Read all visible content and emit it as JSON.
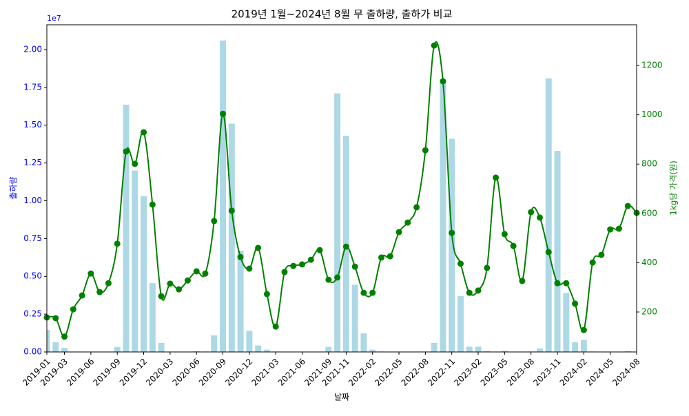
{
  "chart_data": {
    "type": "bar_line",
    "title": "2019년 1월~2024년 8월 무 출하량, 출하가 비교",
    "x_label": "날짜",
    "y_label": "출하량",
    "y2_label": "1kg당 가격(원)",
    "y_offset_label": "1e7",
    "categories": [
      "2019-01",
      null,
      "2019-03",
      null,
      null,
      "2019-06",
      null,
      null,
      "2019-09",
      null,
      null,
      "2019-12",
      null,
      null,
      "2020-03",
      null,
      null,
      "2020-06",
      null,
      null,
      "2020-09",
      null,
      null,
      "2020-12",
      null,
      null,
      "2021-03",
      null,
      null,
      "2021-06",
      null,
      null,
      "2021-09",
      null,
      "2021-11",
      null,
      null,
      "2022-02",
      null,
      null,
      "2022-05",
      null,
      null,
      "2022-08",
      null,
      null,
      "2022-11",
      null,
      null,
      "2023-02",
      null,
      null,
      "2023-05",
      null,
      null,
      "2023-08",
      null,
      null,
      "2023-11",
      null,
      null,
      "2024-02",
      null,
      null,
      "2024-05",
      null,
      null,
      "2024-08"
    ],
    "series": [
      {
        "name": "출하량",
        "type": "bar",
        "axis": "y",
        "color": "#add8e6",
        "values": [
          1460000,
          640000,
          270000,
          20000,
          10000,
          10000,
          10000,
          20000,
          330000,
          16350000,
          12000000,
          10300000,
          4550000,
          600000,
          20000,
          10000,
          10000,
          50000,
          30000,
          1100000,
          20600000,
          15100000,
          6700000,
          1400000,
          430000,
          150000,
          30000,
          10000,
          10000,
          10000,
          10000,
          20000,
          330000,
          17100000,
          14300000,
          4450000,
          1230000,
          150000,
          30000,
          10000,
          10000,
          10000,
          20000,
          30000,
          600000,
          17900000,
          14100000,
          3700000,
          350000,
          350000,
          50000,
          20000,
          80000,
          20000,
          20000,
          30000,
          230000,
          18100000,
          13300000,
          3900000,
          640000,
          800000,
          30000,
          10000,
          10000,
          20000,
          50000,
          20000
        ]
      },
      {
        "name": "1kg당 가격",
        "type": "line",
        "axis": "y2",
        "color": "#008000",
        "values": [
          178,
          175,
          100,
          211,
          267,
          356,
          281,
          317,
          477,
          851,
          801,
          929,
          636,
          264,
          315,
          292,
          328,
          365,
          356,
          569,
          1004,
          611,
          423,
          376,
          460,
          273,
          141,
          362,
          387,
          393,
          412,
          451,
          331,
          340,
          465,
          384,
          278,
          278,
          421,
          426,
          524,
          563,
          625,
          856,
          1281,
          1136,
          521,
          396,
          278,
          287,
          379,
          745,
          516,
          468,
          326,
          605,
          583,
          443,
          317,
          317,
          234,
          127,
          401,
          432,
          535,
          538,
          630,
          602
        ]
      }
    ],
    "ylim": [
      0,
      21640000
    ],
    "yticks": [
      {
        "value": 0,
        "label": "0.00"
      },
      {
        "value": 2500000,
        "label": "0.25"
      },
      {
        "value": 5000000,
        "label": "0.50"
      },
      {
        "value": 7500000,
        "label": "0.75"
      },
      {
        "value": 10000000,
        "label": "1.00"
      },
      {
        "value": 12500000,
        "label": "1.25"
      },
      {
        "value": 15000000,
        "label": "1.50"
      },
      {
        "value": 17500000,
        "label": "1.75"
      },
      {
        "value": 20000000,
        "label": "2.00"
      }
    ],
    "y2lim": [
      38,
      1365
    ],
    "y2ticks": [
      200,
      400,
      600,
      800,
      1000,
      1200
    ],
    "y_color": "#0000ff",
    "y2_color": "#008000"
  }
}
